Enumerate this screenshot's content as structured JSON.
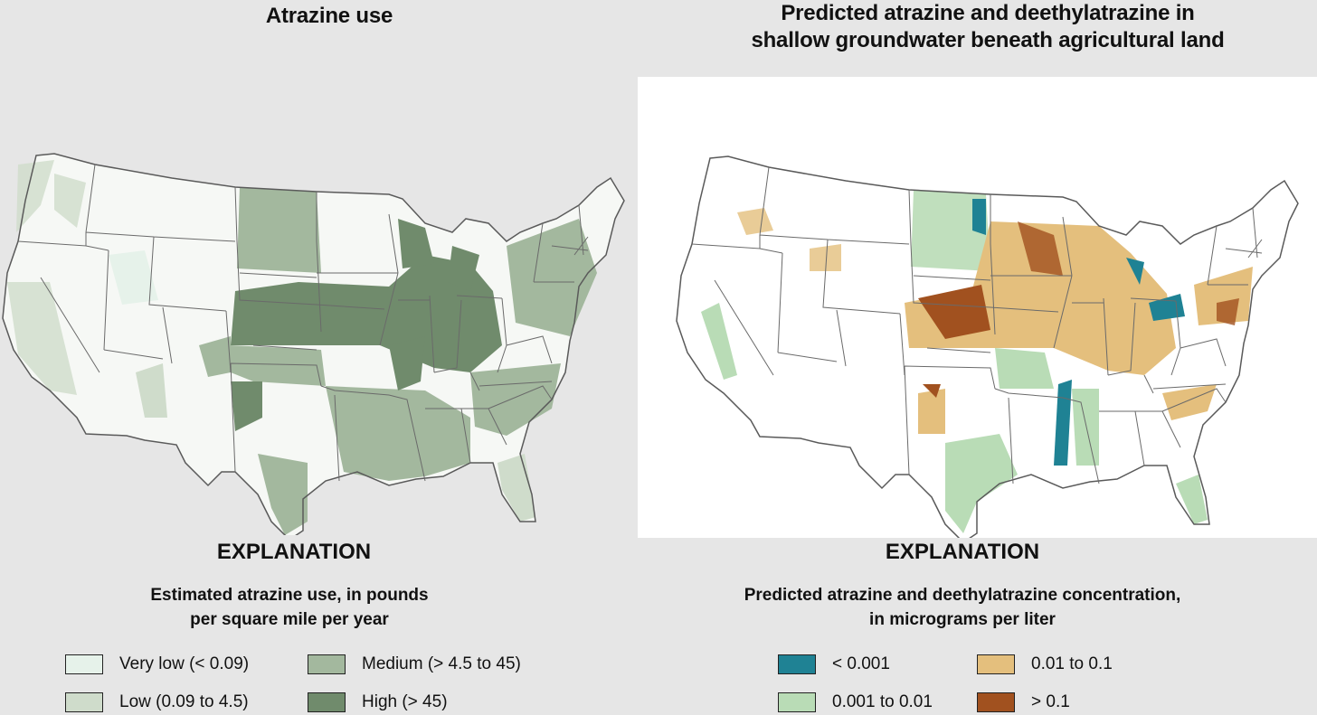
{
  "left": {
    "title": "Atrazine use",
    "explanation": "EXPLANATION",
    "subtitle_line1": "Estimated atrazine use, in pounds",
    "subtitle_line2": "per square mile per year",
    "legend": [
      {
        "label": "Very low (< 0.09)",
        "color": "#e6f2ea"
      },
      {
        "label": "Low (0.09 to 4.5)",
        "color": "#cfdccb"
      },
      {
        "label": "Medium (> 4.5 to 45)",
        "color": "#a3b89e"
      },
      {
        "label": "High (> 45)",
        "color": "#708b6c"
      }
    ]
  },
  "right": {
    "title_line1": "Predicted atrazine and deethylatrazine in",
    "title_line2": "shallow groundwater beneath agricultural land",
    "explanation": "EXPLANATION",
    "subtitle_line1": "Predicted atrazine and deethylatrazine concentration,",
    "subtitle_line2": "in micrograms per liter",
    "legend": [
      {
        "label": "< 0.001",
        "color": "#1f8294"
      },
      {
        "label": "0.001 to 0.01",
        "color": "#b9dcb6"
      },
      {
        "label": "0.01 to 0.1",
        "color": "#e4bf7d"
      },
      {
        "label": "> 0.1",
        "color": "#a1511f"
      }
    ]
  }
}
